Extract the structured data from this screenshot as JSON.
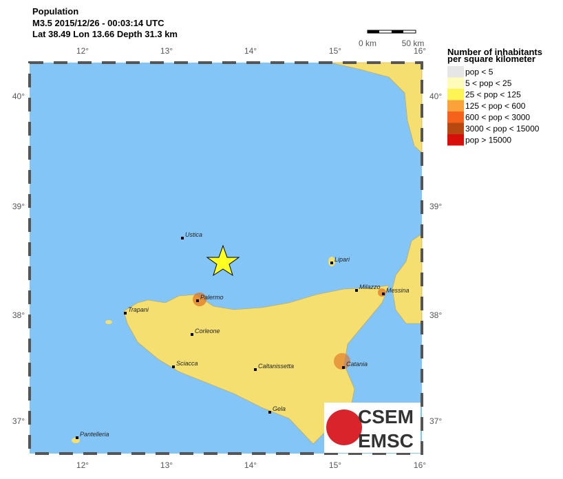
{
  "header": {
    "title": "Population",
    "event": "M3.5  2015/12/26 - 00:03:14 UTC",
    "location": "Lat 38.49    Lon  13.66     Depth  31.3 km"
  },
  "scale_bar": [
    "0 km",
    "50 km"
  ],
  "lon_labels": [
    "12°",
    "13°",
    "14°",
    "15°",
    "16°"
  ],
  "lat_labels": [
    "40°",
    "39°",
    "38°",
    "37°"
  ],
  "cities": [
    "Ustica",
    "Palermo",
    "Trapani",
    "Corleone",
    "Sciacca",
    "Caltanissetta",
    "Catania",
    "Gela",
    "Milazzo",
    "Messina",
    "Lipari",
    "Pantelleria"
  ],
  "legend": {
    "title": [
      "Number of inhabitants",
      "per square kilometer"
    ],
    "items": [
      {
        "label": "pop < 5",
        "color": "#e6e6e6"
      },
      {
        "label": "5 < pop < 25",
        "color": "#fffbb8"
      },
      {
        "label": "25 < pop < 125",
        "color": "#fff455"
      },
      {
        "label": "125 < pop < 600",
        "color": "#fba23a"
      },
      {
        "label": "600 < pop < 3000",
        "color": "#f4621c"
      },
      {
        "label": "3000 < pop < 15000",
        "color": "#b84812"
      },
      {
        "label": "pop > 15000",
        "color": "#d80e0a"
      }
    ]
  },
  "logo": [
    "CSEM",
    "EMSC"
  ]
}
